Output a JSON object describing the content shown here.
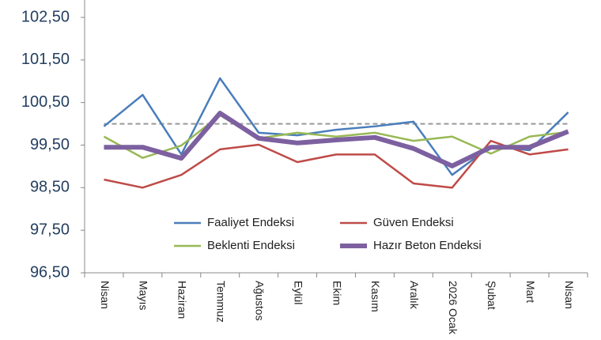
{
  "chart_data": {
    "type": "line",
    "categories": [
      "Nisan",
      "Mayıs",
      "Haziran",
      "Temmuz",
      "Ağustos",
      "Eylül",
      "Ekim",
      "Kasım",
      "Aralık",
      "2026 Ocak",
      "Şubat",
      "Mart",
      "Nisan"
    ],
    "series": [
      {
        "name": "Faaliyet Endeksi",
        "color": "#4a7ebb",
        "width": 2.5,
        "values": [
          99.94,
          100.68,
          99.28,
          101.07,
          99.79,
          99.73,
          99.86,
          99.94,
          100.05,
          98.8,
          99.47,
          99.38,
          100.27
        ]
      },
      {
        "name": "Güven Endeksi",
        "color": "#be4b48",
        "width": 2.5,
        "values": [
          98.69,
          98.5,
          98.8,
          99.4,
          99.51,
          99.1,
          99.28,
          99.28,
          98.6,
          98.5,
          99.6,
          99.28,
          99.4
        ]
      },
      {
        "name": "Beklenti Endeksi",
        "color": "#98b954",
        "width": 2.5,
        "values": [
          99.7,
          99.2,
          99.49,
          100.2,
          99.66,
          99.79,
          99.7,
          99.79,
          99.6,
          99.7,
          99.3,
          99.7,
          99.81
        ]
      },
      {
        "name": "Hazır Beton Endeksi",
        "color": "#7d60a0",
        "width": 6,
        "values": [
          99.45,
          99.45,
          99.19,
          100.25,
          99.66,
          99.55,
          99.62,
          99.68,
          99.42,
          99.01,
          99.45,
          99.45,
          99.82
        ]
      }
    ],
    "reference_line": 100,
    "ylim": [
      96.5,
      102.5
    ],
    "yticks": [
      {
        "value": 96.5,
        "label": "96,50"
      },
      {
        "value": 97.5,
        "label": "97,50"
      },
      {
        "value": 98.5,
        "label": "98,50"
      },
      {
        "value": 99.5,
        "label": "99,50"
      },
      {
        "value": 100.5,
        "label": "100,50"
      },
      {
        "value": 101.5,
        "label": "101,50"
      },
      {
        "value": 102.5,
        "label": "102,50"
      }
    ],
    "grid": false
  }
}
